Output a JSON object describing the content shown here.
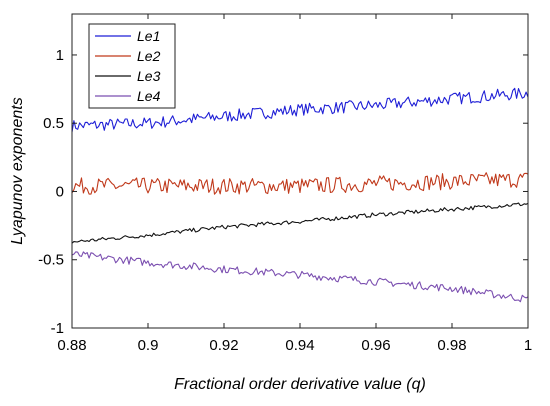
{
  "chart_data": {
    "type": "line",
    "xlabel": "Fractional order derivative value (q)",
    "ylabel": "Lyapunov exponents",
    "xlim": [
      0.88,
      1.0
    ],
    "ylim": [
      -1,
      1.3
    ],
    "xticks": [
      0.88,
      0.9,
      0.92,
      0.94,
      0.96,
      0.98,
      1
    ],
    "xtick_labels": [
      "0.88",
      "0.9",
      "0.92",
      "0.94",
      "0.96",
      "0.98",
      "1"
    ],
    "yticks": [
      -1,
      -0.5,
      0,
      0.5,
      1
    ],
    "ytick_labels": [
      "-1",
      "-0.5",
      "0",
      "0.5",
      "1"
    ],
    "grid": false,
    "legend_position": "top-left",
    "series": [
      {
        "name": "Le1",
        "color": "#1f1fd6",
        "noise": 0.045,
        "anchors": [
          [
            0.88,
            0.48
          ],
          [
            0.9,
            0.5
          ],
          [
            0.92,
            0.55
          ],
          [
            0.94,
            0.6
          ],
          [
            0.96,
            0.63
          ],
          [
            0.98,
            0.68
          ],
          [
            1.0,
            0.72
          ]
        ]
      },
      {
        "name": "Le2",
        "color": "#c0391b",
        "noise": 0.06,
        "anchors": [
          [
            0.88,
            0.04
          ],
          [
            0.94,
            0.04
          ],
          [
            1.0,
            0.09
          ]
        ]
      },
      {
        "name": "Le3",
        "color": "#111111",
        "noise": 0.015,
        "anchors": [
          [
            0.88,
            -0.37
          ],
          [
            0.9,
            -0.32
          ],
          [
            0.92,
            -0.26
          ],
          [
            0.94,
            -0.22
          ],
          [
            0.96,
            -0.17
          ],
          [
            0.98,
            -0.13
          ],
          [
            1.0,
            -0.09
          ]
        ]
      },
      {
        "name": "Le4",
        "color": "#7b4fb0",
        "noise": 0.028,
        "anchors": [
          [
            0.88,
            -0.46
          ],
          [
            0.9,
            -0.52
          ],
          [
            0.92,
            -0.57
          ],
          [
            0.94,
            -0.61
          ],
          [
            0.96,
            -0.66
          ],
          [
            0.98,
            -0.71
          ],
          [
            1.0,
            -0.79
          ]
        ]
      }
    ]
  }
}
